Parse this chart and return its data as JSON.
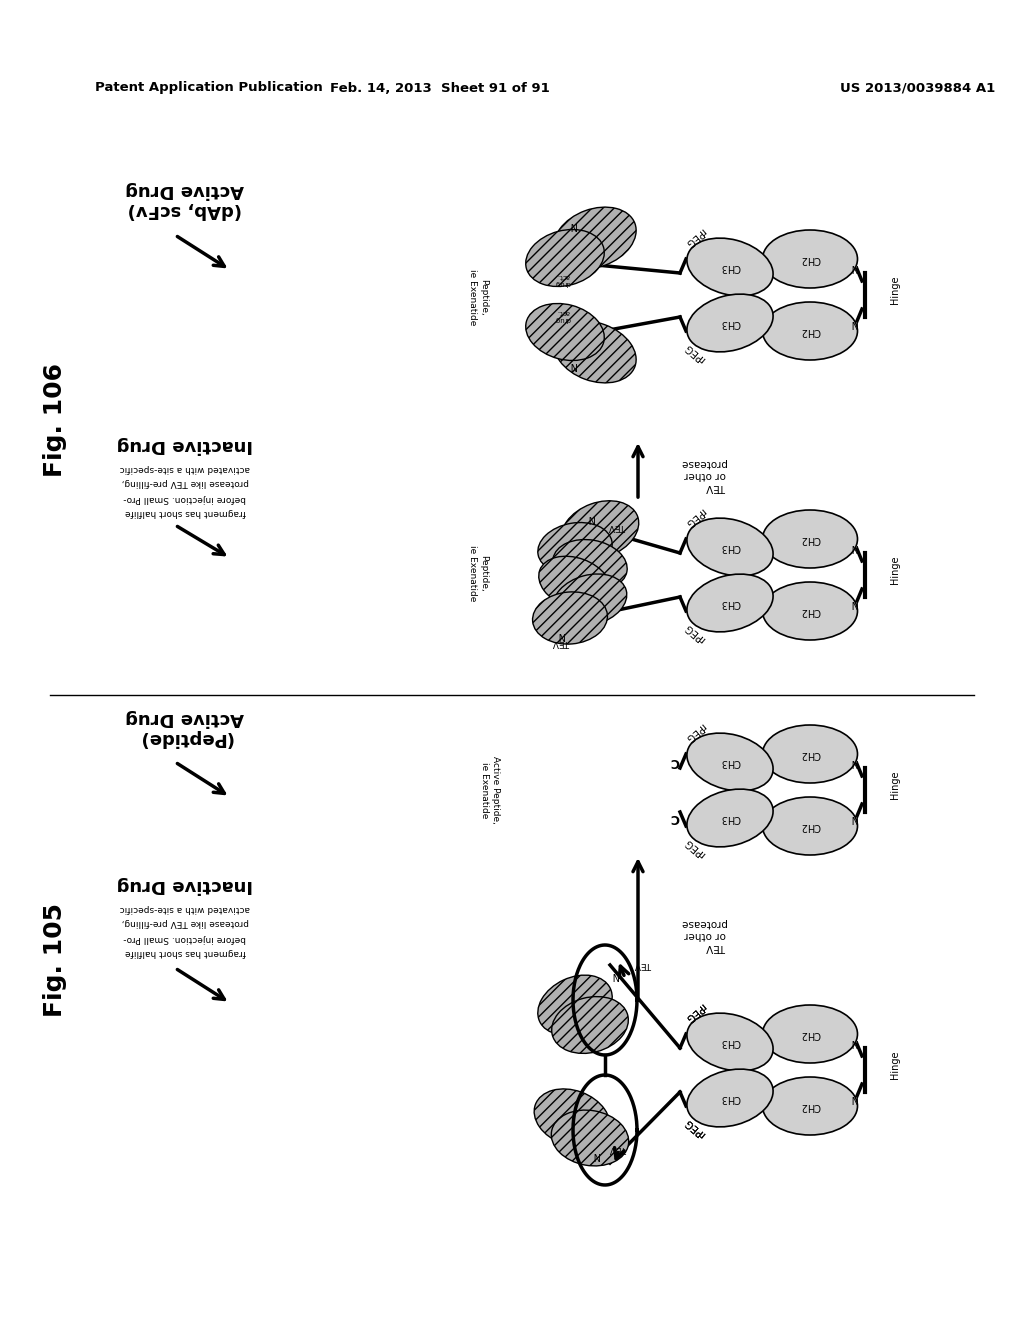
{
  "background_color": "#ffffff",
  "header_left": "Patent Application Publication",
  "header_center": "Feb. 14, 2013  Sheet 91 of 91",
  "header_right": "US 2013/0039884 A1",
  "gray_light": "#d0d0d0",
  "gray_medium": "#aaaaaa",
  "gray_dark": "#888888",
  "fig106": {
    "label": "Fig. 106",
    "active_title": "Active Drug",
    "active_subtitle": "(dAb, scFv)",
    "inactive_title": "Inactive Drug",
    "inactive_subtitle": "activated with a site-specific\nprotease like TEV pre-filling,\nbefore injection. Small Pro-\nfragment has short halflife",
    "tev_label": "TEV\nor other\nprotease",
    "peptide_label": "Peptide,\nie Exenatide"
  },
  "fig105": {
    "label": "Fig. 105",
    "active_title": "Active Drug",
    "active_subtitle": "(Peptide)",
    "inactive_title": "Inactive Drug",
    "inactive_subtitle": "activated with a site-specific\nprotease like TEV pre-filling,\nbefore injection. Small Pro-\nfragment has short halflife",
    "tev_label": "TEV\nor other\nprotease",
    "active_peptide_label": "Active Peptide,\nie Exenatide"
  }
}
